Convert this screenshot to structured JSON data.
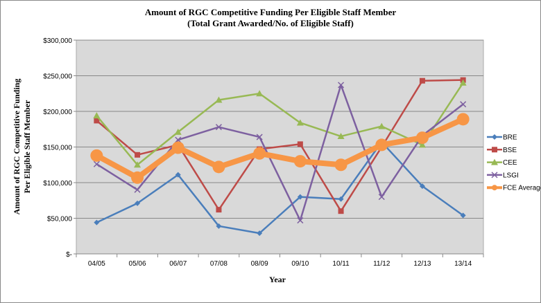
{
  "chart_data": {
    "type": "line",
    "title": "Amount of RGC Competitive Funding Per Eligible Staff Member",
    "subtitle": "(Total Grant Awarded/No. of Eligible Staff)",
    "xlabel": "Year",
    "ylabel_line1": "Amount of RGC Competitive Funding",
    "ylabel_line2": "Per Eligible Staff Member",
    "categories": [
      "04/05",
      "05/06",
      "06/07",
      "07/08",
      "08/09",
      "09/10",
      "10/11",
      "11/12",
      "12/13",
      "13/14"
    ],
    "ylim": [
      0,
      300000
    ],
    "yticks": [
      0,
      50000,
      100000,
      150000,
      200000,
      250000,
      300000
    ],
    "ytick_labels": [
      "$-",
      "$50,000",
      "$100,000",
      "$150,000",
      "$200,000",
      "$250,000",
      "$300,000"
    ],
    "grid": true,
    "legend_position": "right",
    "series": [
      {
        "name": "BRE",
        "color": "#4a7ebb",
        "marker": "diamond",
        "values": [
          44000,
          71000,
          111000,
          39000,
          29000,
          80000,
          77000,
          157000,
          95000,
          54000
        ]
      },
      {
        "name": "BSE",
        "color": "#be4b48",
        "marker": "square",
        "values": [
          187000,
          139000,
          153000,
          62000,
          147000,
          154000,
          60000,
          150000,
          243000,
          244000
        ]
      },
      {
        "name": "CEE",
        "color": "#98b954",
        "marker": "triangle",
        "values": [
          194000,
          125000,
          171000,
          216000,
          225000,
          184000,
          165000,
          179000,
          153000,
          240000
        ]
      },
      {
        "name": "LSGI",
        "color": "#7d60a0",
        "marker": "x",
        "values": [
          126000,
          90000,
          160000,
          178000,
          164000,
          47000,
          237000,
          80000,
          166000,
          210000
        ]
      },
      {
        "name": "FCE Average",
        "color": "#f79646",
        "marker": "circle",
        "values": [
          138000,
          107000,
          149000,
          122000,
          141000,
          130000,
          125000,
          153000,
          163000,
          189000
        ]
      }
    ]
  }
}
